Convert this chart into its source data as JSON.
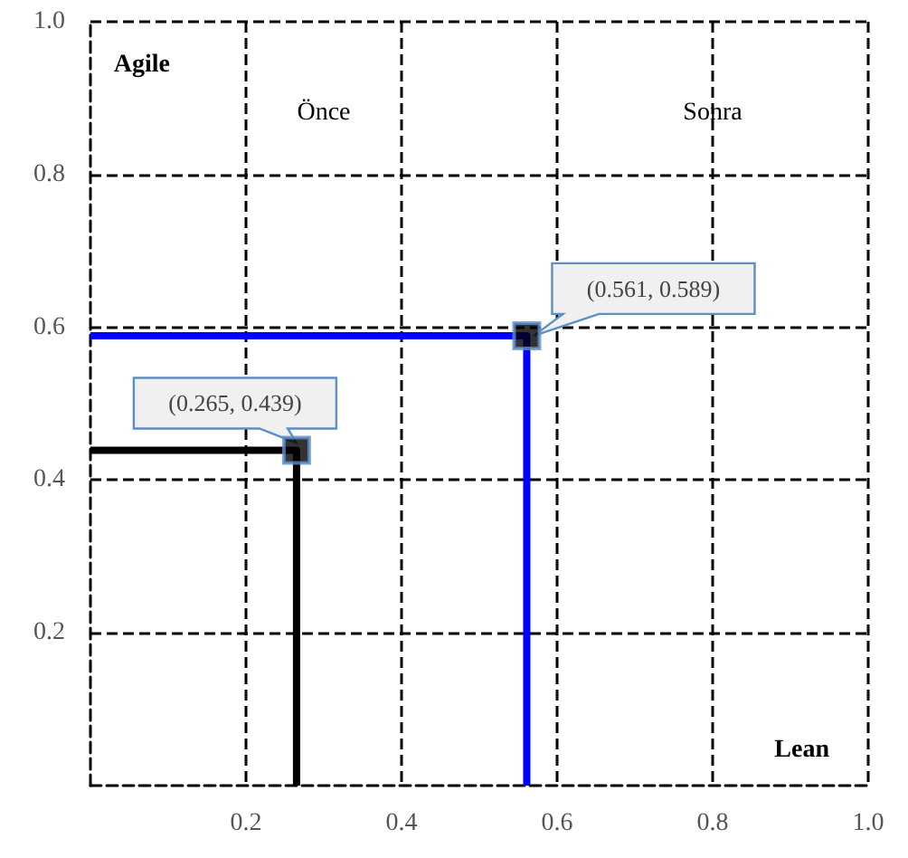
{
  "chart_data": {
    "type": "line",
    "series": [
      {
        "color": "#000000",
        "x": [
          0,
          0.265,
          0.265
        ],
        "values": [
          0.439,
          0.439,
          0
        ],
        "marker": "none"
      },
      {
        "color": "#0000ff",
        "x": [
          0,
          0.561,
          0.561
        ],
        "values": [
          0.589,
          0.589,
          0
        ],
        "marker": "none"
      },
      {
        "type": "scatter",
        "color": "#000000",
        "x": [
          0.265,
          0.561
        ],
        "values": [
          0.439,
          0.589
        ]
      }
    ],
    "annotations": [
      "Agile",
      "Önce",
      "Sonra",
      "Lean",
      {
        "text": "(0.265, 0.439)",
        "x": 0.265,
        "y": 0.439
      },
      {
        "text": "(0.561, 0.589)",
        "x": 0.561,
        "y": 0.589
      }
    ],
    "xlim": [
      0,
      1
    ],
    "xticks": [
      0.2,
      0.4,
      0.6,
      0.8,
      {
        "value": 1,
        "label": "1.0"
      }
    ],
    "ylim": [
      0,
      1
    ],
    "yticks": [
      0.2,
      0.4,
      0.6,
      0.8,
      {
        "value": 1,
        "label": "1.0"
      }
    ],
    "grid": true,
    "marker": "square",
    "line_style": "solid"
  }
}
